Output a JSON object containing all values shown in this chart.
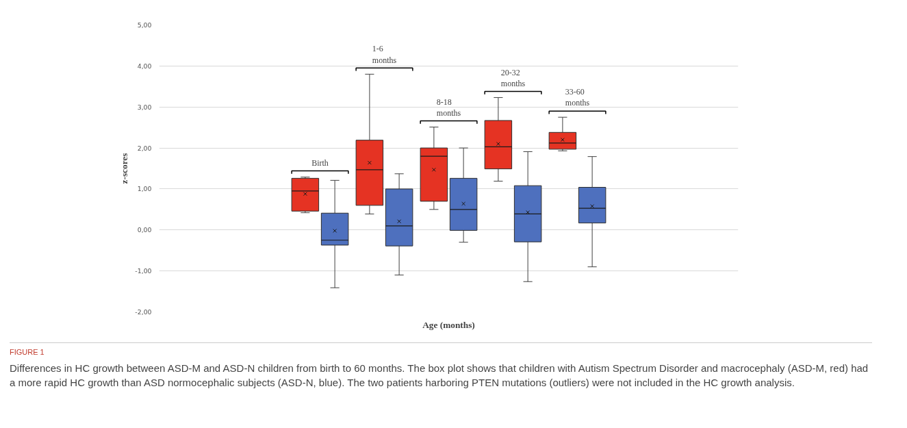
{
  "chart_data": {
    "type": "box",
    "categories": [
      null,
      null,
      null,
      null,
      null,
      null,
      null,
      null,
      null
    ],
    "xlabel": "Age (months)",
    "ylabel": "z-scores",
    "ylim": [
      -2,
      5
    ],
    "yticks": [
      {
        "value": -2,
        "label": "-2,00"
      },
      {
        "value": -1,
        "label": "-1,00"
      },
      {
        "value": 0,
        "label": "0,00"
      },
      {
        "value": 1,
        "label": "1,00"
      },
      {
        "value": 2,
        "label": "2,00"
      },
      {
        "value": 3,
        "label": "3,00"
      },
      {
        "value": 4,
        "label": "4,00"
      },
      {
        "value": 5,
        "label": "5,00"
      }
    ],
    "grid": "y",
    "marker": "cross",
    "series": [
      {
        "color": "#e53323",
        "boxes": [
          null,
          null,
          {
            "low": 0.42,
            "q1": 0.46,
            "median": 0.95,
            "q3": 1.26,
            "high": 1.29,
            "mean": 0.88
          },
          {
            "low": 0.39,
            "q1": 0.6,
            "median": 1.47,
            "q3": 2.19,
            "high": 3.8,
            "mean": 1.64
          },
          {
            "low": 0.5,
            "q1": 0.7,
            "median": 1.8,
            "q3": 2.0,
            "high": 2.51,
            "mean": 1.47
          },
          {
            "low": 1.19,
            "q1": 1.49,
            "median": 2.03,
            "q3": 2.67,
            "high": 3.23,
            "mean": 2.1
          },
          {
            "low": 1.93,
            "q1": 1.97,
            "median": 2.12,
            "q3": 2.38,
            "high": 2.75,
            "mean": 2.2
          },
          null,
          null
        ]
      },
      {
        "color": "#4e70be",
        "boxes": [
          null,
          null,
          {
            "low": -1.41,
            "q1": -0.37,
            "median": -0.25,
            "q3": 0.41,
            "high": 1.21,
            "mean": -0.02
          },
          {
            "low": -1.1,
            "q1": -0.39,
            "median": 0.1,
            "q3": 1.0,
            "high": 1.37,
            "mean": 0.21
          },
          {
            "low": -0.3,
            "q1": -0.01,
            "median": 0.5,
            "q3": 1.26,
            "high": 2.0,
            "mean": 0.64
          },
          {
            "low": -1.26,
            "q1": -0.29,
            "median": 0.39,
            "q3": 1.08,
            "high": 1.91,
            "mean": 0.43
          },
          {
            "low": -0.9,
            "q1": 0.17,
            "median": 0.53,
            "q3": 1.04,
            "high": 1.79,
            "mean": 0.58
          },
          null,
          null
        ]
      }
    ],
    "annotations": [
      "Birth",
      "1-6 months",
      "8-18 months",
      "20-32 months",
      "33-60 months",
      "FIGURE 1",
      "Differences in HC growth between ASD-M and ASD-N children from birth to 60 months. The box plot shows that children with Autism Spectrum Disorder and macrocephaly (ASD-M, red) had a more rapid HC growth than ASD normocephalic subjects (ASD-N, blue). The two patients harboring PTEN mutations (outliers) were not included in the HC growth analysis."
    ]
  }
}
